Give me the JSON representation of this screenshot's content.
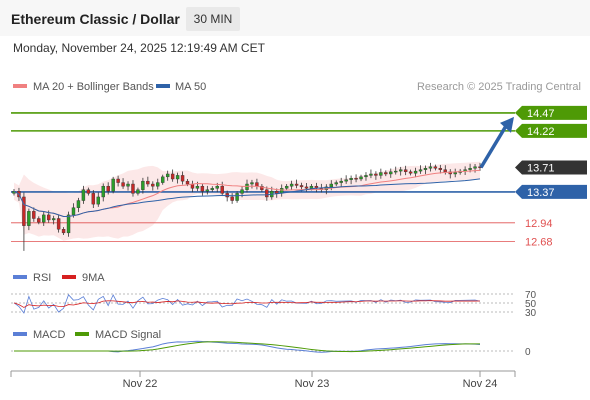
{
  "header": {
    "title": "Ethereum Classic / Dollar",
    "timeframe": "30 MIN"
  },
  "datetime": "Monday, November 24, 2025 12:19:49 AM CET",
  "legend": {
    "ma20": "MA 20 + Bollinger Bands",
    "ma50": "MA 50",
    "credit": "Research © 2025 Trading Central"
  },
  "colors": {
    "green": "#4e9a06",
    "blue": "#2e62a8",
    "red": "#e05050",
    "dark": "#333333",
    "ma20": "#f08080",
    "band": "#fbdede"
  },
  "chart_data": {
    "type": "candlestick",
    "price_min": 12.45,
    "price_max": 14.65,
    "current_price": 13.71,
    "levels": [
      {
        "value": 14.47,
        "label": "14.47",
        "kind": "resistance"
      },
      {
        "value": 14.22,
        "label": "14.22",
        "kind": "resistance"
      },
      {
        "value": 13.37,
        "label": "13.37",
        "kind": "pivot"
      },
      {
        "value": 12.94,
        "label": "12.94",
        "kind": "support"
      },
      {
        "value": 12.68,
        "label": "12.68",
        "kind": "support"
      }
    ],
    "x_ticks": [
      "Nov 22",
      "Nov 23",
      "Nov 24"
    ],
    "closes": [
      13.38,
      13.3,
      12.9,
      13.1,
      13.0,
      12.95,
      13.05,
      12.98,
      13.0,
      12.85,
      12.8,
      13.05,
      13.15,
      13.25,
      13.4,
      13.35,
      13.2,
      13.3,
      13.45,
      13.38,
      13.55,
      13.5,
      13.45,
      13.48,
      13.35,
      13.4,
      13.52,
      13.48,
      13.45,
      13.5,
      13.58,
      13.62,
      13.55,
      13.6,
      13.52,
      13.48,
      13.42,
      13.45,
      13.38,
      13.4,
      13.42,
      13.45,
      13.35,
      13.3,
      13.25,
      13.35,
      13.4,
      13.48,
      13.5,
      13.45,
      13.4,
      13.3,
      13.38,
      13.35,
      13.42,
      13.45,
      13.48,
      13.46,
      13.44,
      13.42,
      13.45,
      13.42,
      13.4,
      13.44,
      13.48,
      13.5,
      13.52,
      13.54,
      13.56,
      13.55,
      13.58,
      13.6,
      13.62,
      13.6,
      13.64,
      13.62,
      13.65,
      13.66,
      13.68,
      13.65,
      13.63,
      13.66,
      13.68,
      13.7,
      13.72,
      13.7,
      13.68,
      13.65,
      13.62,
      13.64,
      13.66,
      13.68,
      13.7,
      13.72,
      13.71
    ],
    "rsi": {
      "name": "RSI",
      "ma_name": "9MA",
      "ticks": [
        "70",
        "50",
        "30"
      ]
    },
    "macd": {
      "name": "MACD",
      "signal_name": "MACD Signal",
      "tick": "0"
    }
  }
}
